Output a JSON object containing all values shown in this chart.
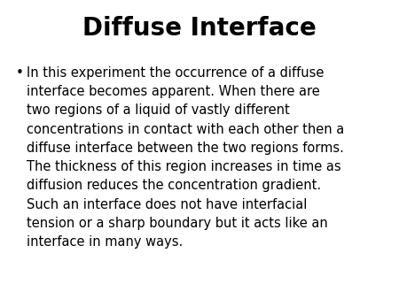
{
  "title": "Diffuse Interface",
  "title_fontsize": 20,
  "title_fontweight": "bold",
  "body_lines": [
    "In this experiment the occurrence of a diffuse",
    "interface becomes apparent. When there are",
    "two regions of a liquid of vastly different",
    "concentrations in contact with each other then a",
    "diffuse interface between the two regions forms.",
    "The thickness of this region increases in time as",
    "diffusion reduces the concentration gradient.",
    "Such an interface does not have interfacial",
    "tension or a sharp boundary but it acts like an",
    "interface in many ways."
  ],
  "body_fontsize": 10.5,
  "bullet": "•",
  "background_color": "#ffffff",
  "text_color": "#000000",
  "fig_width": 4.5,
  "fig_height": 3.38,
  "dpi": 100
}
